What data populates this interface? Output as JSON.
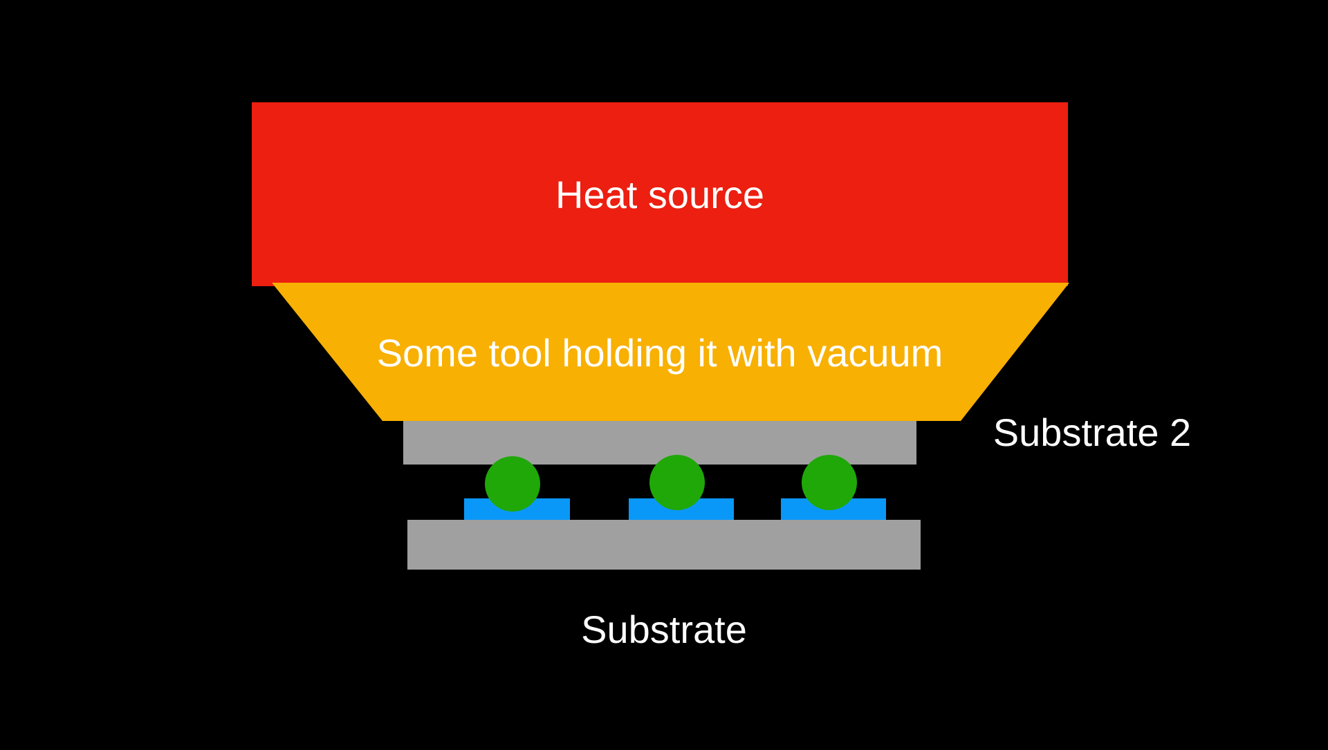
{
  "labels": {
    "heat_source": "Heat source",
    "tool": "Some tool holding it with vacuum",
    "substrate_2": "Substrate 2",
    "substrate": "Substrate"
  },
  "colors": {
    "background": "#000000",
    "heat_source": "#ec1f10",
    "tool": "#f8b002",
    "substrate": "#a0a0a0",
    "pad": "#0a98f8",
    "solder_bump": "#1fa808",
    "text": "#ffffff"
  }
}
